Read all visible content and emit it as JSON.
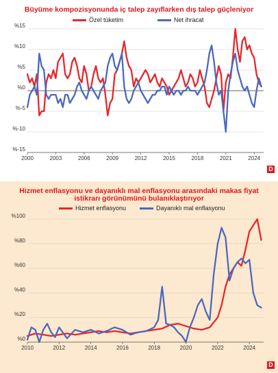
{
  "chart_data": [
    {
      "type": "line",
      "title": "Büyüme kompozisyonunda iç talep zayıflarken dış talep güçleniyor",
      "series": [
        {
          "name": "Özel tüketim",
          "color": "#e8262c",
          "x": [
            2000.0,
            2000.25,
            2000.5,
            2000.75,
            2001.0,
            2001.25,
            2001.5,
            2001.75,
            2002.0,
            2002.25,
            2002.5,
            2002.75,
            2003.0,
            2003.25,
            2003.5,
            2003.75,
            2004.0,
            2004.25,
            2004.5,
            2004.75,
            2005.0,
            2005.25,
            2005.5,
            2005.75,
            2006.0,
            2006.25,
            2006.5,
            2006.75,
            2007.0,
            2007.25,
            2007.5,
            2007.75,
            2008.0,
            2008.25,
            2008.5,
            2008.75,
            2009.0,
            2009.25,
            2009.5,
            2009.75,
            2010.0,
            2010.25,
            2010.5,
            2010.75,
            2011.0,
            2011.25,
            2011.5,
            2011.75,
            2012.0,
            2012.25,
            2012.5,
            2012.75,
            2013.0,
            2013.25,
            2013.5,
            2013.75,
            2014.0,
            2014.25,
            2014.5,
            2014.75,
            2015.0,
            2015.25,
            2015.5,
            2015.75,
            2016.0,
            2016.25,
            2016.5,
            2016.75,
            2017.0,
            2017.25,
            2017.5,
            2017.75,
            2018.0,
            2018.25,
            2018.5,
            2018.75,
            2019.0,
            2019.25,
            2019.5,
            2019.75,
            2020.0,
            2020.25,
            2020.5,
            2020.75,
            2021.0,
            2021.25,
            2021.5,
            2021.75,
            2022.0,
            2022.25,
            2022.5,
            2022.75,
            2023.0,
            2023.25,
            2023.5,
            2023.75,
            2024.0,
            2024.25,
            2024.5,
            2024.75
          ],
          "values": [
            4,
            2,
            3,
            1,
            4,
            -6,
            -5,
            -5,
            2,
            4,
            3,
            5,
            3,
            7,
            8,
            9,
            4,
            3,
            4,
            7,
            8,
            6,
            3,
            2,
            6,
            4,
            0,
            1,
            4,
            6,
            3,
            2,
            3,
            -1,
            -6,
            -3,
            -2,
            4,
            5,
            7,
            9,
            12,
            8,
            6,
            5,
            1,
            3,
            2,
            3,
            4,
            5,
            4,
            2,
            3,
            4,
            2,
            1,
            3,
            2,
            1,
            -1,
            0,
            1,
            2,
            3,
            5,
            3,
            1,
            2,
            4,
            3,
            1,
            2,
            5,
            3,
            1,
            -3,
            -4,
            -2,
            0,
            3,
            6,
            4,
            -5,
            2,
            4,
            3,
            8,
            15,
            10,
            7,
            12,
            13,
            10,
            11,
            9,
            8,
            4,
            2,
            1
          ]
        },
        {
          "name": "Net ihracat",
          "color": "#4a69bd",
          "x": [
            2000.0,
            2000.25,
            2000.5,
            2000.75,
            2001.0,
            2001.25,
            2001.5,
            2001.75,
            2002.0,
            2002.25,
            2002.5,
            2002.75,
            2003.0,
            2003.25,
            2003.5,
            2003.75,
            2004.0,
            2004.25,
            2004.5,
            2004.75,
            2005.0,
            2005.25,
            2005.5,
            2005.75,
            2006.0,
            2006.25,
            2006.5,
            2006.75,
            2007.0,
            2007.25,
            2007.5,
            2007.75,
            2008.0,
            2008.25,
            2008.5,
            2008.75,
            2009.0,
            2009.25,
            2009.5,
            2009.75,
            2010.0,
            2010.25,
            2010.5,
            2010.75,
            2011.0,
            2011.25,
            2011.5,
            2011.75,
            2012.0,
            2012.25,
            2012.5,
            2012.75,
            2013.0,
            2013.25,
            2013.5,
            2013.75,
            2014.0,
            2014.25,
            2014.5,
            2014.75,
            2015.0,
            2015.25,
            2015.5,
            2015.75,
            2016.0,
            2016.25,
            2016.5,
            2016.75,
            2017.0,
            2017.25,
            2017.5,
            2017.75,
            2018.0,
            2018.25,
            2018.5,
            2018.75,
            2019.0,
            2019.25,
            2019.5,
            2019.75,
            2020.0,
            2020.25,
            2020.5,
            2020.75,
            2021.0,
            2021.25,
            2021.5,
            2021.75,
            2022.0,
            2022.25,
            2022.5,
            2022.75,
            2023.0,
            2023.25,
            2023.5,
            2023.75,
            2024.0,
            2024.25,
            2024.5,
            2024.75
          ],
          "values": [
            -4,
            -1,
            0,
            1,
            -1,
            9,
            6,
            5,
            -1,
            -2,
            -1,
            -1,
            -1,
            -3,
            -2,
            -4,
            -1,
            -1,
            -3,
            -2,
            -1,
            1,
            2,
            0,
            -1,
            -2,
            0,
            1,
            0,
            -1,
            -2,
            0,
            1,
            2,
            6,
            8,
            9,
            6,
            5,
            7,
            9,
            1,
            -2,
            -3,
            -2,
            0,
            1,
            2,
            0,
            -1,
            -2,
            -3,
            -2,
            -1,
            -1,
            0,
            0,
            1,
            1,
            -1,
            1,
            0,
            -1,
            0,
            0,
            -1,
            0,
            0,
            1,
            0,
            0,
            0,
            -1,
            0,
            1,
            2,
            5,
            9,
            11,
            7,
            2,
            -1,
            0,
            -5,
            -10,
            0,
            4,
            7,
            9,
            5,
            3,
            1,
            0,
            1,
            -1,
            -3,
            -4,
            0,
            3,
            1
          ]
        }
      ],
      "xticks": [
        "2000",
        "2003",
        "2006",
        "2009",
        "2012",
        "2015",
        "2018",
        "2021",
        "2024"
      ],
      "yticks": [
        "%-15",
        "%-10",
        "%-5",
        "%0",
        "%5",
        "%10",
        "%15"
      ],
      "ylim": [
        -15,
        15
      ],
      "xlim": [
        2000,
        2025
      ]
    },
    {
      "type": "line",
      "title": "Hizmet enflasyonu ve dayanıklı mal enflasyonu arasındaki makas fiyat istikrarı görünümünü bulanıklaştırıyor",
      "series": [
        {
          "name": "Hizmet enflasyonu",
          "color": "#e8262c",
          "x": [
            2010.0,
            2010.5,
            2011.0,
            2011.5,
            2012.0,
            2012.5,
            2013.0,
            2013.5,
            2014.0,
            2014.5,
            2015.0,
            2015.5,
            2016.0,
            2016.5,
            2017.0,
            2017.5,
            2018.0,
            2018.5,
            2019.0,
            2019.5,
            2020.0,
            2020.5,
            2021.0,
            2021.5,
            2022.0,
            2022.25,
            2022.5,
            2022.75,
            2023.0,
            2023.25,
            2023.5,
            2023.75,
            2024.0,
            2024.25,
            2024.5,
            2024.75
          ],
          "values": [
            5,
            7,
            6,
            5,
            6,
            7,
            6,
            7,
            8,
            9,
            8,
            9,
            8,
            7,
            8,
            9,
            10,
            11,
            14,
            15,
            13,
            11,
            10,
            12,
            20,
            30,
            45,
            55,
            60,
            65,
            62,
            75,
            90,
            95,
            100,
            83
          ]
        },
        {
          "name": "Dayanıklı mal enflasyonu",
          "color": "#4a69bd",
          "x": [
            2010.0,
            2010.25,
            2010.5,
            2010.75,
            2011.0,
            2011.25,
            2011.5,
            2011.75,
            2012.0,
            2012.5,
            2013.0,
            2013.5,
            2014.0,
            2014.5,
            2015.0,
            2015.5,
            2016.0,
            2016.5,
            2017.0,
            2017.5,
            2018.0,
            2018.25,
            2018.5,
            2018.75,
            2019.0,
            2019.25,
            2019.5,
            2019.75,
            2020.0,
            2020.25,
            2020.5,
            2020.75,
            2021.0,
            2021.25,
            2021.5,
            2021.75,
            2022.0,
            2022.25,
            2022.5,
            2022.75,
            2023.0,
            2023.25,
            2023.5,
            2023.75,
            2024.0,
            2024.25,
            2024.5,
            2024.75
          ],
          "values": [
            2,
            12,
            10,
            0,
            10,
            15,
            8,
            4,
            12,
            3,
            10,
            8,
            10,
            7,
            9,
            12,
            10,
            6,
            8,
            9,
            12,
            18,
            45,
            15,
            14,
            12,
            8,
            5,
            0,
            12,
            20,
            30,
            35,
            25,
            18,
            55,
            80,
            93,
            85,
            50,
            60,
            65,
            68,
            64,
            67,
            40,
            30,
            28
          ]
        }
      ],
      "xticks": [
        "2010",
        "2012",
        "2014",
        "2016",
        "2018",
        "2020",
        "2022",
        "2024"
      ],
      "yticks": [
        "%0",
        "%20",
        "%40",
        "%60",
        "%80",
        "%100"
      ],
      "ylim": [
        0,
        100
      ],
      "xlim": [
        2010,
        2024.9
      ]
    }
  ],
  "badge": "D"
}
